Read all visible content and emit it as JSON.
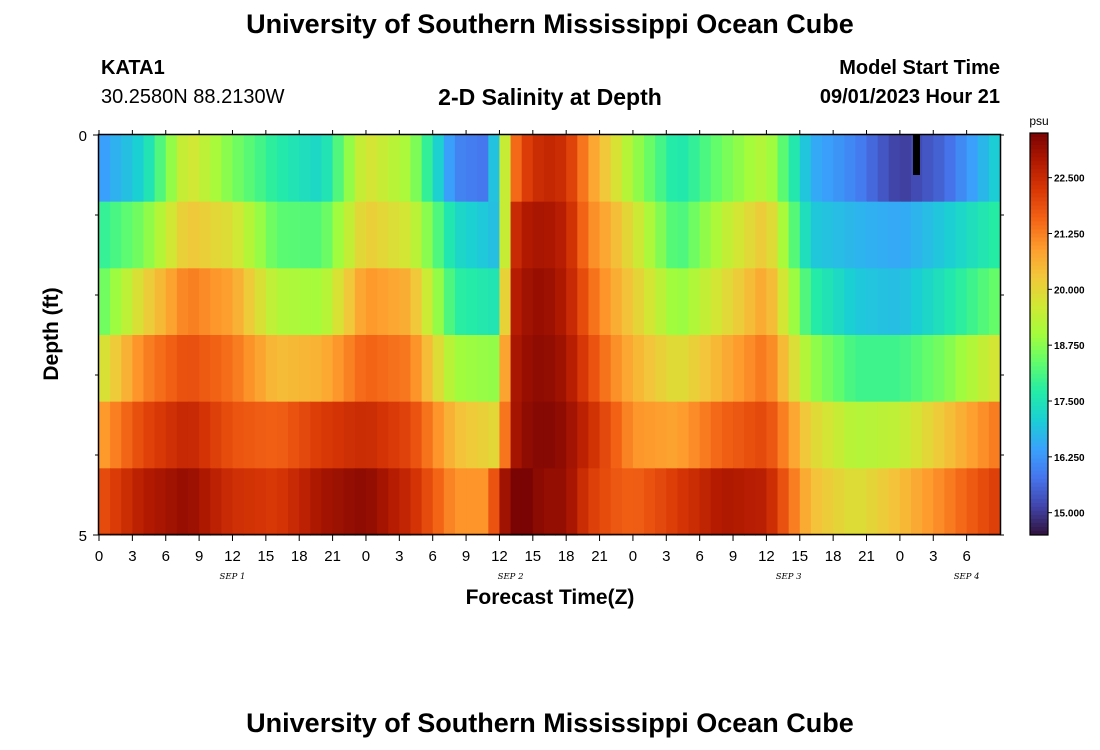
{
  "header": {
    "title": "University of Southern Mississippi Ocean Cube",
    "station": "KATA1",
    "coords": "30.2580N  88.2130W",
    "subtitle": "2-D Salinity at Depth",
    "model_start_label": "Model Start Time",
    "model_start_value": "09/01/2023 Hour 21"
  },
  "footer": {
    "title": "University of Southern Mississippi Ocean Cube"
  },
  "chart_data": {
    "type": "heatmap",
    "title": "2-D Salinity at Depth",
    "xlabel": "Forecast Time(Z)",
    "ylabel": "Depth (ft)",
    "ylim": [
      0,
      5
    ],
    "y_tick_labels": [
      "0",
      "5"
    ],
    "x_hours_range": [
      0,
      81
    ],
    "x_tick_labels": [
      "0",
      "3",
      "6",
      "9",
      "12",
      "15",
      "18",
      "21",
      "0",
      "3",
      "6",
      "9",
      "12",
      "15",
      "18",
      "21",
      "0",
      "3",
      "6",
      "9",
      "12",
      "15",
      "18",
      "21",
      "0",
      "3",
      "6"
    ],
    "date_labels": [
      {
        "label": "SEP 1",
        "hour": 12
      },
      {
        "label": "SEP 2",
        "hour": 37
      },
      {
        "label": "SEP 3",
        "hour": 62
      },
      {
        "label": "SEP 4",
        "hour": 78
      }
    ],
    "colorbar": {
      "unit": "psu",
      "min": 14.5,
      "max": 23.5,
      "ticks": [
        "22.500",
        "21.250",
        "20.000",
        "18.750",
        "17.500",
        "16.250",
        "15.000"
      ],
      "colors": [
        "#30123b",
        "#4145ab",
        "#4675ed",
        "#39a2fc",
        "#1bcfd4",
        "#24eca6",
        "#61fc6c",
        "#a4fc3b",
        "#d1e834",
        "#f3c63a",
        "#fe9b2d",
        "#f36315",
        "#d93806",
        "#b11901",
        "#7a0403"
      ]
    },
    "depth_levels": [
      0,
      1,
      2,
      3,
      4,
      5
    ],
    "missing_cell": {
      "hour": 73,
      "depth_level": 0
    },
    "series": [
      {
        "name": "depth 0-1 ft",
        "hour": [
          0,
          4,
          8,
          12,
          16,
          20,
          24,
          28,
          32,
          35,
          36,
          37,
          38,
          40,
          42,
          44,
          46,
          48,
          52,
          56,
          60,
          64,
          68,
          72,
          76,
          81
        ],
        "values": [
          16.3,
          17.2,
          19.8,
          18.6,
          17.7,
          17.2,
          19.8,
          19.0,
          16.0,
          15.8,
          18.0,
          21.0,
          22.0,
          22.6,
          22.4,
          21.0,
          20.0,
          19.0,
          17.5,
          18.5,
          19.3,
          16.6,
          16.0,
          15.0,
          15.6,
          17.2
        ]
      },
      {
        "name": "depth 1-2 ft",
        "hour": [
          0,
          4,
          8,
          12,
          16,
          20,
          24,
          28,
          32,
          36,
          37,
          38,
          40,
          42,
          44,
          46,
          48,
          52,
          56,
          60,
          64,
          68,
          72,
          76,
          81
        ],
        "values": [
          17.8,
          18.6,
          20.3,
          19.8,
          18.3,
          18.2,
          20.2,
          19.6,
          17.3,
          16.8,
          22.2,
          22.8,
          23.0,
          22.7,
          21.2,
          20.6,
          19.8,
          18.0,
          19.3,
          20.3,
          17.0,
          16.7,
          16.5,
          17.0,
          17.8
        ]
      },
      {
        "name": "depth 2-3 ft",
        "hour": [
          0,
          4,
          8,
          12,
          16,
          20,
          24,
          28,
          32,
          36,
          37,
          38,
          40,
          42,
          44,
          46,
          48,
          52,
          56,
          60,
          64,
          68,
          72,
          76,
          81
        ],
        "values": [
          18.3,
          20.0,
          21.3,
          20.8,
          19.2,
          19.0,
          21.0,
          20.6,
          17.8,
          17.5,
          22.6,
          23.0,
          23.2,
          22.8,
          21.6,
          20.8,
          20.2,
          18.8,
          19.8,
          20.8,
          17.8,
          17.0,
          16.8,
          17.5,
          18.5
        ]
      },
      {
        "name": "depth 3-4 ft",
        "hour": [
          0,
          4,
          8,
          12,
          16,
          20,
          24,
          28,
          32,
          36,
          37,
          38,
          40,
          42,
          44,
          46,
          48,
          52,
          56,
          60,
          64,
          68,
          72,
          76,
          81
        ],
        "values": [
          19.6,
          21.2,
          21.9,
          21.4,
          20.4,
          20.6,
          21.6,
          21.3,
          19.0,
          18.8,
          22.8,
          23.1,
          23.3,
          23.0,
          22.0,
          21.2,
          20.6,
          19.8,
          20.6,
          21.4,
          18.9,
          18.0,
          18.0,
          18.6,
          19.8
        ]
      },
      {
        "name": "depth 4-5 ft",
        "hour": [
          0,
          4,
          8,
          12,
          16,
          20,
          24,
          28,
          32,
          36,
          37,
          38,
          40,
          42,
          44,
          46,
          48,
          52,
          56,
          60,
          64,
          68,
          72,
          76,
          81
        ],
        "values": [
          20.8,
          22.0,
          22.6,
          21.8,
          21.6,
          22.2,
          22.5,
          22.0,
          20.4,
          19.9,
          22.8,
          23.2,
          23.4,
          23.2,
          22.5,
          21.8,
          21.0,
          20.8,
          21.6,
          22.0,
          20.0,
          19.2,
          19.4,
          20.3,
          21.4
        ]
      },
      {
        "name": "depth 5 ft (bottom)",
        "hour": [
          0,
          4,
          8,
          12,
          16,
          20,
          24,
          28,
          32,
          35,
          36,
          37,
          38,
          40,
          42,
          44,
          46,
          48,
          52,
          56,
          60,
          64,
          68,
          72,
          76,
          81
        ],
        "values": [
          21.8,
          22.8,
          23.2,
          22.4,
          22.2,
          23.0,
          23.3,
          22.5,
          21.0,
          21.0,
          22.6,
          23.5,
          23.6,
          23.2,
          23.2,
          22.2,
          21.8,
          21.6,
          22.2,
          22.9,
          22.7,
          20.4,
          19.8,
          20.4,
          21.2,
          22.2
        ]
      }
    ]
  }
}
